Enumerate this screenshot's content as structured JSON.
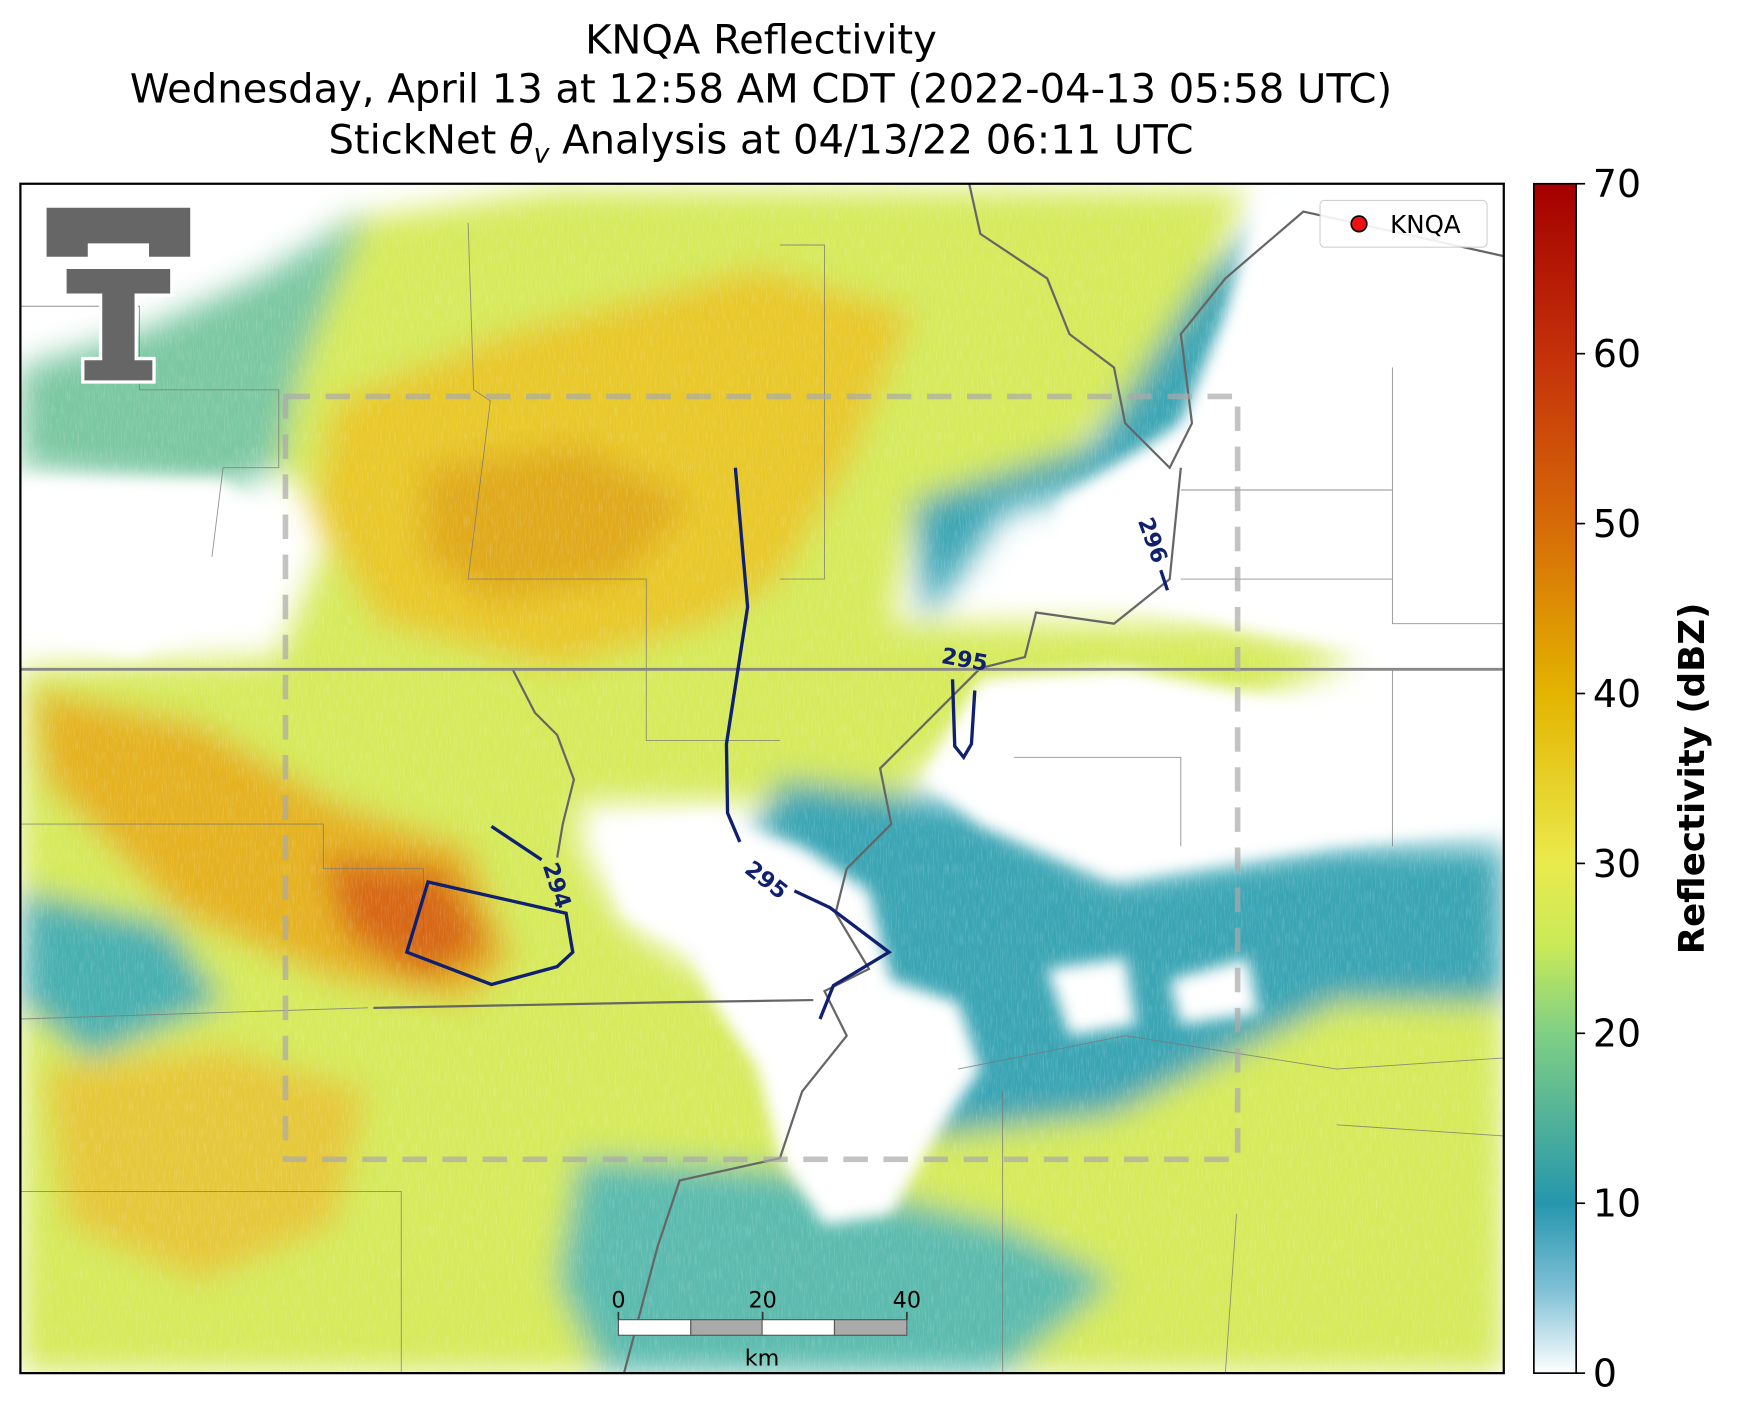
{
  "title": {
    "line1": "KNQA Reflectivity",
    "line2": "Wednesday, April 13 at 12:58 AM CDT (2022-04-13 05:58 UTC)",
    "line3": {
      "before": "StickNet ",
      "symbol": "θ",
      "subscript": "v",
      "after": " Analysis at 04/13/22 06:11 UTC"
    }
  },
  "legend": [
    "KNQA"
  ],
  "contours": [
    {
      "level": 294
    },
    {
      "level": 295
    },
    {
      "level": 295
    },
    {
      "level": 296
    }
  ],
  "colorbar": {
    "label": "Reflectivity (dBZ)",
    "lim": [
      0,
      70
    ],
    "ticks": [
      0,
      10,
      20,
      30,
      40,
      50,
      60,
      70
    ]
  },
  "scale_bar": {
    "lim": [
      0,
      40
    ],
    "ticks": [
      0,
      20,
      40
    ],
    "unit": "km"
  }
}
